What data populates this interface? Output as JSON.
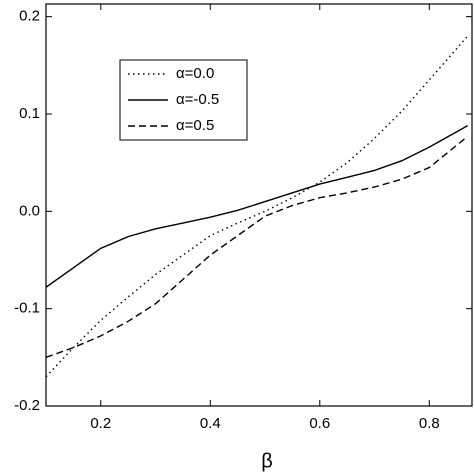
{
  "chart_data": {
    "type": "line",
    "xlabel": "β",
    "x": [
      0.1,
      0.15,
      0.2,
      0.25,
      0.3,
      0.35,
      0.4,
      0.45,
      0.5,
      0.55,
      0.6,
      0.65,
      0.7,
      0.75,
      0.8,
      0.87
    ],
    "series": [
      {
        "name": "α=0.0",
        "color": "#000000",
        "linestyle": "dotted",
        "values": [
          -0.17,
          -0.14,
          -0.112,
          -0.088,
          -0.065,
          -0.045,
          -0.025,
          -0.012,
          0.0,
          0.014,
          0.03,
          0.05,
          0.075,
          0.103,
          0.135,
          0.18
        ]
      },
      {
        "name": "α=-0.5",
        "color": "#000000",
        "linestyle": "solid",
        "values": [
          -0.078,
          -0.058,
          -0.038,
          -0.026,
          -0.018,
          -0.012,
          -0.006,
          0.001,
          0.01,
          0.019,
          0.028,
          0.035,
          0.042,
          0.052,
          0.066,
          0.088
        ]
      },
      {
        "name": "α=0.5",
        "color": "#000000",
        "linestyle": "dashed",
        "values": [
          -0.15,
          -0.14,
          -0.128,
          -0.113,
          -0.095,
          -0.07,
          -0.045,
          -0.025,
          -0.005,
          0.006,
          0.014,
          0.019,
          0.025,
          0.033,
          0.045,
          0.077
        ]
      }
    ],
    "xlim": [
      0.1,
      0.878
    ],
    "ylim": [
      -0.2,
      0.213
    ],
    "xticks": [
      0.2,
      0.4,
      0.6,
      0.8
    ],
    "yticks": [
      -0.2,
      -0.1,
      {
        "value": 0,
        "label": "0.0"
      },
      0.1,
      0.2
    ],
    "legend": "upper left",
    "grid": false
  }
}
